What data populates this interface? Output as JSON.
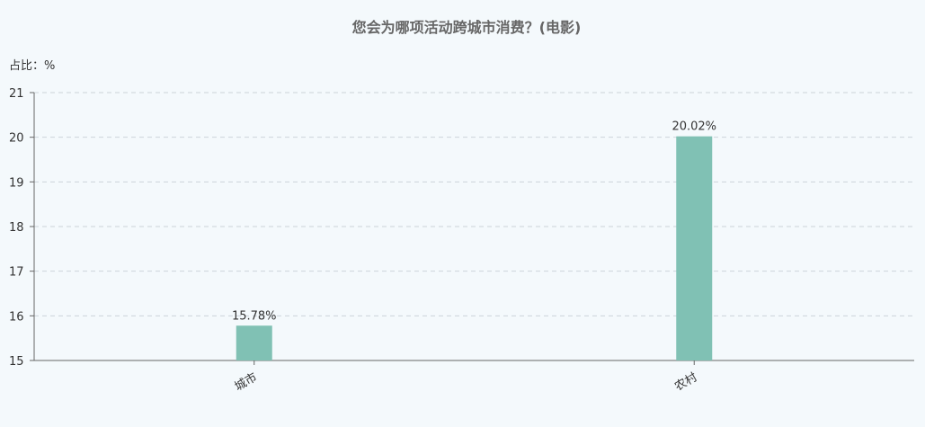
{
  "chart_data": {
    "type": "bar",
    "title": "您会为哪项活动跨城市消费？(电影)",
    "ylabel": "占比：%",
    "categories": [
      "城市",
      "农村"
    ],
    "values": [
      15.78,
      20.02
    ],
    "data_labels": [
      "15.78%",
      "20.02%"
    ],
    "ylim": [
      15,
      21
    ],
    "yticks": [
      "15",
      "16",
      "17",
      "18",
      "19",
      "20",
      "21"
    ],
    "grid": true,
    "bar_color": "#80c1b4"
  }
}
